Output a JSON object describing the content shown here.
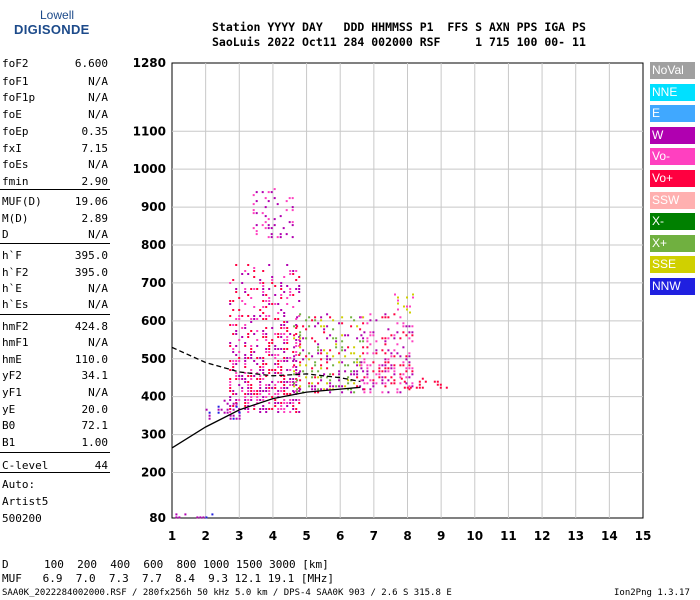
{
  "logo": {
    "line1": "Lowell",
    "line2": "DIGISONDE"
  },
  "header": {
    "line1": "Station YYYY DAY   DDD HHMMSS P1  FFS S AXN PPS IGA PS",
    "line2": "SaoLuis 2022 Oct11 284 002000 RSF     1 715 100 00- 11"
  },
  "params": [
    {
      "n": "foF2",
      "v": "6.600"
    },
    {
      "n": "foF1",
      "v": "N/A"
    },
    {
      "n": "foF1p",
      "v": "N/A"
    },
    {
      "n": "foE",
      "v": "N/A"
    },
    {
      "n": "foEp",
      "v": "0.35"
    },
    {
      "n": "fxI",
      "v": "7.15"
    },
    {
      "n": "foEs",
      "v": "N/A"
    },
    {
      "n": "fmin",
      "v": "2.90"
    },
    {
      "n": "MUF(D)",
      "v": "19.06"
    },
    {
      "n": "M(D)",
      "v": "2.89"
    },
    {
      "n": "D",
      "v": "N/A"
    },
    {
      "n": "h`F",
      "v": "395.0"
    },
    {
      "n": "h`F2",
      "v": "395.0"
    },
    {
      "n": "h`E",
      "v": "N/A"
    },
    {
      "n": "h`Es",
      "v": "N/A"
    },
    {
      "n": "hmF2",
      "v": "424.8"
    },
    {
      "n": "hmF1",
      "v": "N/A"
    },
    {
      "n": "hmE",
      "v": "110.0"
    },
    {
      "n": "yF2",
      "v": "34.1"
    },
    {
      "n": "yF1",
      "v": "N/A"
    },
    {
      "n": "yE",
      "v": "20.0"
    },
    {
      "n": "B0",
      "v": "72.1"
    },
    {
      "n": "B1",
      "v": "1.00"
    },
    {
      "n": "C-level",
      "v": "44"
    }
  ],
  "auto": {
    "line1": "Auto:",
    "line2": "Artist5",
    "line3": "500200"
  },
  "legend": [
    {
      "label": "NoVal",
      "color": "#a0a0a0"
    },
    {
      "label": "NNE",
      "color": "#00e0ff"
    },
    {
      "label": "E",
      "color": "#40a8ff"
    },
    {
      "label": "W",
      "color": "#b000b0"
    },
    {
      "label": "Vo-",
      "color": "#ff40c0"
    },
    {
      "label": "Vo+",
      "color": "#ff0040"
    },
    {
      "label": "SSW",
      "color": "#ffb0b0"
    },
    {
      "label": "X-",
      "color": "#008000"
    },
    {
      "label": "X+",
      "color": "#70b040"
    },
    {
      "label": "SSE",
      "color": "#d0d000"
    },
    {
      "label": "NNW",
      "color": "#2020e0"
    }
  ],
  "chart_data": {
    "type": "scatter",
    "xlim": [
      1,
      15
    ],
    "ylim": [
      80,
      1280
    ],
    "x_ticks": [
      1,
      2,
      3,
      4,
      5,
      6,
      7,
      8,
      9,
      10,
      11,
      12,
      13,
      14,
      15
    ],
    "y_ticks": [
      80,
      200,
      300,
      400,
      500,
      600,
      700,
      800,
      900,
      1000,
      1100,
      1280
    ],
    "grid": true,
    "profile_curve": [
      [
        1,
        265
      ],
      [
        2,
        320
      ],
      [
        3,
        365
      ],
      [
        4,
        395
      ],
      [
        5,
        412
      ],
      [
        6,
        420
      ],
      [
        6.6,
        424.8
      ]
    ],
    "trace_curve": [
      [
        1,
        530
      ],
      [
        2,
        490
      ],
      [
        3,
        465
      ],
      [
        4,
        455
      ],
      [
        5,
        460
      ],
      [
        6,
        450
      ],
      [
        6.6,
        440
      ]
    ],
    "echo_clusters": [
      {
        "f": [
          2.7,
          4.8
        ],
        "h": [
          360,
          750
        ],
        "density": 0.55,
        "colors": [
          "#b000b0",
          "#ff0040",
          "#ff40c0"
        ]
      },
      {
        "f": [
          3.4,
          4.6
        ],
        "h": [
          820,
          950
        ],
        "density": 0.3,
        "colors": [
          "#b000b0",
          "#ff40c0"
        ]
      },
      {
        "f": [
          4.6,
          6.7
        ],
        "h": [
          410,
          620
        ],
        "density": 0.45,
        "colors": [
          "#ff0040",
          "#d0d000",
          "#70b040",
          "#b000b0"
        ]
      },
      {
        "f": [
          6.6,
          8.2
        ],
        "h": [
          410,
          620
        ],
        "density": 0.45,
        "colors": [
          "#ff0040",
          "#ff40c0",
          "#b000b0"
        ]
      },
      {
        "f": [
          7.8,
          9.2
        ],
        "h": [
          420,
          450
        ],
        "density": 0.5,
        "colors": [
          "#ff0040"
        ]
      },
      {
        "f": [
          7.6,
          8.2
        ],
        "h": [
          620,
          680
        ],
        "density": 0.3,
        "colors": [
          "#d0d000",
          "#ff40c0"
        ]
      },
      {
        "f": [
          1.1,
          2.3
        ],
        "h": [
          82,
          92
        ],
        "density": 0.4,
        "colors": [
          "#2020e0",
          "#b000b0"
        ]
      },
      {
        "f": [
          2.0,
          3.0
        ],
        "h": [
          340,
          400
        ],
        "density": 0.35,
        "colors": [
          "#2020e0",
          "#b000b0"
        ]
      }
    ]
  },
  "footer": {
    "d_label": "D",
    "d_values": "100  200  400  600  800 1000 1500 3000 [km]",
    "muf_label": "MUF",
    "muf_values": " 6.9  7.0  7.3  7.7  8.4  9.3 12.1 19.1 [MHz]",
    "info": "SAA0K_2022284002000.RSF / 280fx256h 50 kHz 5.0 km / DPS-4 SAA0K 903 / 2.6 S 315.8 E",
    "version": "Ion2Png 1.3.17"
  }
}
